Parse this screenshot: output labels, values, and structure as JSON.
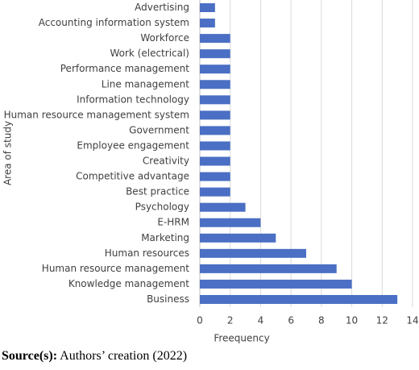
{
  "chart_data": {
    "type": "bar",
    "orientation": "horizontal",
    "categories": [
      "Advertising",
      "Accounting information system",
      "Workforce",
      "Work (electrical)",
      "Performance management",
      "Line management",
      "Information technology",
      "Human resource management system",
      "Government",
      "Employee engagement",
      "Creativity",
      "Competitive advantage",
      "Best practice",
      "Psychology",
      "E-HRM",
      "Marketing",
      "Human resources",
      "Human resource management",
      "Knowledge management",
      "Business"
    ],
    "values": [
      1,
      1,
      2,
      2,
      2,
      2,
      2,
      2,
      2,
      2,
      2,
      2,
      2,
      3,
      4,
      5,
      7,
      9,
      10,
      13
    ],
    "color": "#4a6fc4",
    "xlabel": "Freequency",
    "ylabel": "Area of study",
    "xlim": [
      0,
      14
    ],
    "xticks": [
      0,
      2,
      4,
      6,
      8,
      10,
      12,
      14
    ],
    "grid": true
  },
  "source": {
    "label": "Source(s):",
    "text": "Authors’ creation (2022)"
  }
}
